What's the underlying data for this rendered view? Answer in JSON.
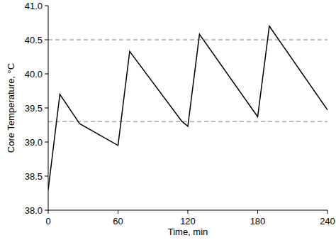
{
  "chart_data": {
    "type": "line",
    "x_label": "Time, min",
    "y_label": "Core Temperature, °C",
    "xlim": [
      0,
      240
    ],
    "xticks": [
      0,
      60,
      120,
      180,
      240
    ],
    "ylim": [
      38,
      41
    ],
    "yticks": [
      {
        "value": 38,
        "label": "38.0"
      },
      {
        "value": 38.5,
        "label": "38.5"
      },
      {
        "value": 39,
        "label": "39.0"
      },
      {
        "value": 39.5,
        "label": "39.5"
      },
      {
        "value": 40,
        "label": "40.0"
      },
      {
        "value": 40.5,
        "label": "40.5"
      },
      {
        "value": 41,
        "label": "41.0"
      }
    ],
    "grid": false,
    "series": [
      {
        "color": "#000000",
        "line_style": "solid",
        "x": [
          0,
          10,
          27,
          60,
          70,
          115,
          120,
          130,
          180,
          190,
          240
        ],
        "values": [
          38.3,
          39.7,
          39.27,
          38.95,
          40.33,
          39.3,
          39.23,
          40.58,
          39.37,
          40.7,
          39.47
        ]
      },
      {
        "color": "#808080",
        "line_style": "dashed",
        "x": [
          0,
          240
        ],
        "values": [
          40.5,
          40.5
        ]
      },
      {
        "color": "#808080",
        "line_style": "dashed",
        "x": [
          0,
          240
        ],
        "values": [
          39.3,
          39.3
        ]
      }
    ]
  }
}
